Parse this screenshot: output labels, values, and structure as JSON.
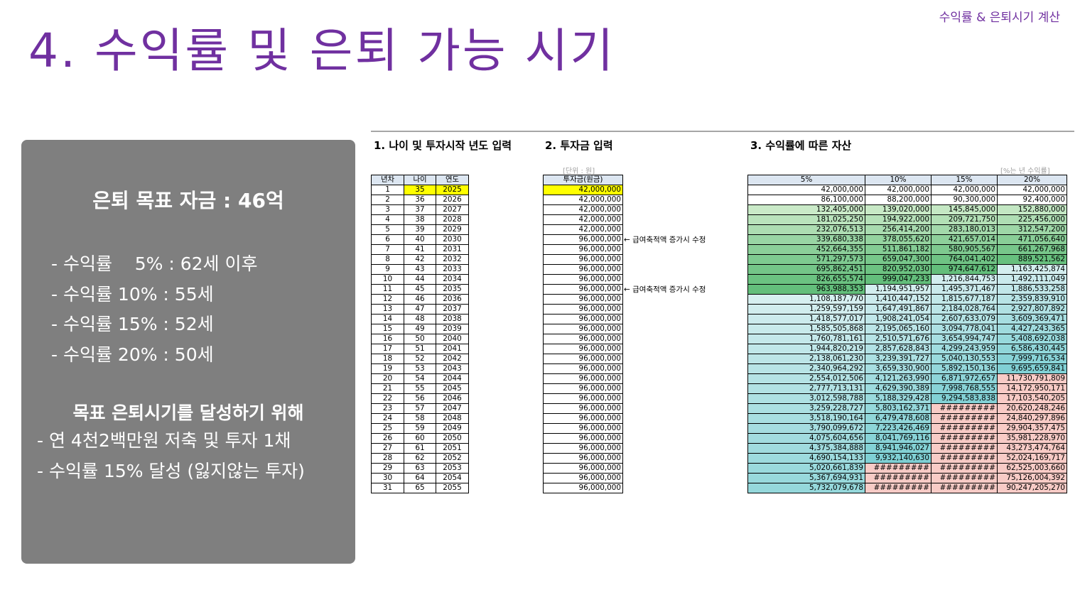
{
  "header": {
    "top_label": "수익률 & 은퇴시기 계산",
    "title": "4. 수익률 및 은퇴 가능 시기"
  },
  "panel": {
    "heading": "은퇴 목표 자금 : 46억",
    "rate_items": [
      "- 수익률    5% : 62세 이후",
      "- 수익률 10% : 55세",
      "- 수익률 15% : 52세",
      "- 수익률 20% : 50세"
    ],
    "goal_heading": "목표 은퇴시기를 달성하기 위해",
    "goal_items": [
      "- 연 4천2백만원 저축 및 투자 1채",
      "- 수익률 15% 달성 (잃지않는 투자)"
    ]
  },
  "sheet": {
    "sec1_title": "1. 나이 및 투자시작 년도 입력",
    "sec2_title": "2. 투자금 입력",
    "sec3_title": "3. 수익률에 따른 자산",
    "unit_note": "[단위 : 원]",
    "pct_note": "[%는 년 수익률]",
    "left_headers": [
      "년차",
      "나이",
      "연도"
    ],
    "invest_header": "투자금(원금)",
    "asset_headers": [
      "5%",
      "10%",
      "15%",
      "20%"
    ],
    "notes": [
      "← 급여축적액 증가시 수정",
      "← 급여축적액 증가시 수정"
    ],
    "colors": {
      "input_yellow": "#ffff00",
      "header_blue": "#dce6f1",
      "green_light": "#d9f0d3",
      "green_dark": "#63be7b",
      "teal_light": "#daf0f1",
      "teal_dark": "#7fd0d4",
      "pink": "#f8cbc6"
    },
    "rows": [
      {
        "n": "1",
        "age": "35",
        "year": "2025",
        "inv": "42,000,000",
        "v": [
          "42,000,000",
          "42,000,000",
          "42,000,000",
          "42,000,000"
        ]
      },
      {
        "n": "2",
        "age": "36",
        "year": "2026",
        "inv": "42,000,000",
        "v": [
          "86,100,000",
          "88,200,000",
          "90,300,000",
          "92,400,000"
        ]
      },
      {
        "n": "3",
        "age": "37",
        "year": "2027",
        "inv": "42,000,000",
        "v": [
          "132,405,000",
          "139,020,000",
          "145,845,000",
          "152,880,000"
        ]
      },
      {
        "n": "4",
        "age": "38",
        "year": "2028",
        "inv": "42,000,000",
        "v": [
          "181,025,250",
          "194,922,000",
          "209,721,750",
          "225,456,000"
        ]
      },
      {
        "n": "5",
        "age": "39",
        "year": "2029",
        "inv": "42,000,000",
        "v": [
          "232,076,513",
          "256,414,200",
          "283,180,013",
          "312,547,200"
        ]
      },
      {
        "n": "6",
        "age": "40",
        "year": "2030",
        "inv": "96,000,000",
        "v": [
          "339,680,338",
          "378,055,620",
          "421,657,014",
          "471,056,640"
        ]
      },
      {
        "n": "7",
        "age": "41",
        "year": "2031",
        "inv": "96,000,000",
        "v": [
          "452,664,355",
          "511,861,182",
          "580,905,567",
          "661,267,968"
        ]
      },
      {
        "n": "8",
        "age": "42",
        "year": "2032",
        "inv": "96,000,000",
        "v": [
          "571,297,573",
          "659,047,300",
          "764,041,402",
          "889,521,562"
        ]
      },
      {
        "n": "9",
        "age": "43",
        "year": "2033",
        "inv": "96,000,000",
        "v": [
          "695,862,451",
          "820,952,030",
          "974,647,612",
          "1,163,425,874"
        ]
      },
      {
        "n": "10",
        "age": "44",
        "year": "2034",
        "inv": "96,000,000",
        "v": [
          "826,655,574",
          "999,047,233",
          "1,216,844,753",
          "1,492,111,049"
        ]
      },
      {
        "n": "11",
        "age": "45",
        "year": "2035",
        "inv": "96,000,000",
        "v": [
          "963,988,353",
          "1,194,951,957",
          "1,495,371,467",
          "1,886,533,258"
        ]
      },
      {
        "n": "12",
        "age": "46",
        "year": "2036",
        "inv": "96,000,000",
        "v": [
          "1,108,187,770",
          "1,410,447,152",
          "1,815,677,187",
          "2,359,839,910"
        ]
      },
      {
        "n": "13",
        "age": "47",
        "year": "2037",
        "inv": "96,000,000",
        "v": [
          "1,259,597,159",
          "1,647,491,867",
          "2,184,028,764",
          "2,927,807,892"
        ]
      },
      {
        "n": "14",
        "age": "48",
        "year": "2038",
        "inv": "96,000,000",
        "v": [
          "1,418,577,017",
          "1,908,241,054",
          "2,607,633,079",
          "3,609,369,471"
        ]
      },
      {
        "n": "15",
        "age": "49",
        "year": "2039",
        "inv": "96,000,000",
        "v": [
          "1,585,505,868",
          "2,195,065,160",
          "3,094,778,041",
          "4,427,243,365"
        ]
      },
      {
        "n": "16",
        "age": "50",
        "year": "2040",
        "inv": "96,000,000",
        "v": [
          "1,760,781,161",
          "2,510,571,676",
          "3,654,994,747",
          "5,408,692,038"
        ]
      },
      {
        "n": "17",
        "age": "51",
        "year": "2041",
        "inv": "96,000,000",
        "v": [
          "1,944,820,219",
          "2,857,628,843",
          "4,299,243,959",
          "6,586,430,445"
        ]
      },
      {
        "n": "18",
        "age": "52",
        "year": "2042",
        "inv": "96,000,000",
        "v": [
          "2,138,061,230",
          "3,239,391,727",
          "5,040,130,553",
          "7,999,716,534"
        ]
      },
      {
        "n": "19",
        "age": "53",
        "year": "2043",
        "inv": "96,000,000",
        "v": [
          "2,340,964,292",
          "3,659,330,900",
          "5,892,150,136",
          "9,695,659,841"
        ]
      },
      {
        "n": "20",
        "age": "54",
        "year": "2044",
        "inv": "96,000,000",
        "v": [
          "2,554,012,506",
          "4,121,263,990",
          "6,871,972,657",
          "11,730,791,809"
        ]
      },
      {
        "n": "21",
        "age": "55",
        "year": "2045",
        "inv": "96,000,000",
        "v": [
          "2,777,713,131",
          "4,629,390,389",
          "7,998,768,555",
          "14,172,950,171"
        ]
      },
      {
        "n": "22",
        "age": "56",
        "year": "2046",
        "inv": "96,000,000",
        "v": [
          "3,012,598,788",
          "5,188,329,428",
          "9,294,583,838",
          "17,103,540,205"
        ]
      },
      {
        "n": "23",
        "age": "57",
        "year": "2047",
        "inv": "96,000,000",
        "v": [
          "3,259,228,727",
          "5,803,162,371",
          "#########",
          "20,620,248,246"
        ]
      },
      {
        "n": "24",
        "age": "58",
        "year": "2048",
        "inv": "96,000,000",
        "v": [
          "3,518,190,164",
          "6,479,478,608",
          "#########",
          "24,840,297,896"
        ]
      },
      {
        "n": "25",
        "age": "59",
        "year": "2049",
        "inv": "96,000,000",
        "v": [
          "3,790,099,672",
          "7,223,426,469",
          "#########",
          "29,904,357,475"
        ]
      },
      {
        "n": "26",
        "age": "60",
        "year": "2050",
        "inv": "96,000,000",
        "v": [
          "4,075,604,656",
          "8,041,769,116",
          "#########",
          "35,981,228,970"
        ]
      },
      {
        "n": "27",
        "age": "61",
        "year": "2051",
        "inv": "96,000,000",
        "v": [
          "4,375,384,888",
          "8,941,946,027",
          "#########",
          "43,273,474,764"
        ]
      },
      {
        "n": "28",
        "age": "62",
        "year": "2052",
        "inv": "96,000,000",
        "v": [
          "4,690,154,133",
          "9,932,140,630",
          "#########",
          "52,024,169,717"
        ]
      },
      {
        "n": "29",
        "age": "63",
        "year": "2053",
        "inv": "96,000,000",
        "v": [
          "5,020,661,839",
          "#########",
          "#########",
          "62,525,003,660"
        ]
      },
      {
        "n": "30",
        "age": "64",
        "year": "2054",
        "inv": "96,000,000",
        "v": [
          "5,367,694,931",
          "#########",
          "#########",
          "75,126,004,392"
        ]
      },
      {
        "n": "31",
        "age": "65",
        "year": "2055",
        "inv": "96,000,000",
        "v": [
          "5,732,079,678",
          "#########",
          "#########",
          "90,247,205,270"
        ]
      }
    ]
  }
}
